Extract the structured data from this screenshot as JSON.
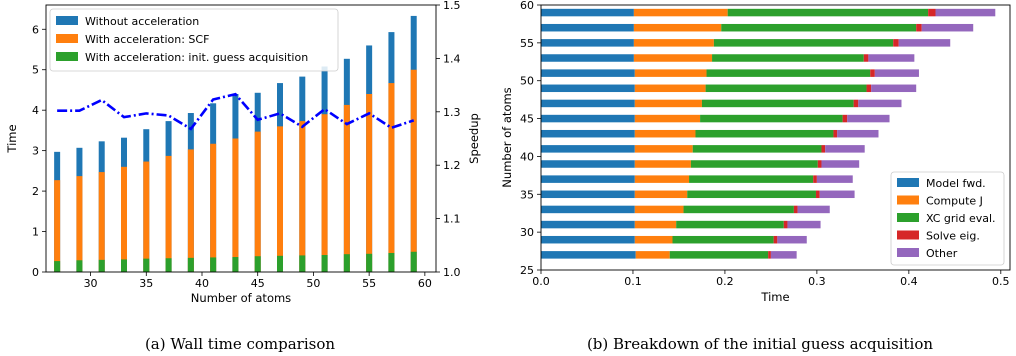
{
  "colors": {
    "blue": "#1f77b4",
    "orange": "#ff7f0e",
    "green": "#2ca02c",
    "red": "#d62728",
    "purple": "#9467bd",
    "speedup_line": "#0000ff"
  },
  "chart_data": [
    {
      "type": "bar",
      "caption": "(a) Wall time comparison",
      "xlabel": "Number of atoms",
      "ylabel": "Time",
      "y2label": "Speedup",
      "xlim": [
        26,
        61
      ],
      "ylim": [
        0,
        6.6
      ],
      "y2lim": [
        1.0,
        1.5
      ],
      "xticks": [
        30,
        35,
        40,
        45,
        50,
        55,
        60
      ],
      "yticks": [
        0,
        1,
        2,
        3,
        4,
        5,
        6
      ],
      "y2ticks": [
        "1.0",
        "1.1",
        "1.2",
        "1.3",
        "1.4",
        "1.5"
      ],
      "legend_position": "top-left",
      "x": [
        27,
        29,
        31,
        33,
        35,
        37,
        39,
        41,
        43,
        45,
        47,
        49,
        51,
        53,
        55,
        57,
        59
      ],
      "series": [
        {
          "name": "Without acceleration",
          "color": "blue",
          "values": [
            2.97,
            3.07,
            3.23,
            3.32,
            3.53,
            3.73,
            3.93,
            4.17,
            4.4,
            4.43,
            4.67,
            4.83,
            5.08,
            5.27,
            5.6,
            5.93,
            6.33
          ]
        },
        {
          "name": "With acceleration: SCF",
          "color": "orange",
          "values": [
            2.27,
            2.37,
            2.47,
            2.6,
            2.73,
            2.87,
            3.03,
            3.17,
            3.3,
            3.47,
            3.6,
            3.73,
            3.9,
            4.13,
            4.4,
            4.67,
            5.0
          ]
        },
        {
          "name": "With acceleration: init. guess acquisition",
          "color": "green",
          "values": [
            0.27,
            0.29,
            0.3,
            0.31,
            0.33,
            0.34,
            0.35,
            0.36,
            0.37,
            0.39,
            0.4,
            0.41,
            0.42,
            0.44,
            0.45,
            0.47,
            0.5
          ]
        }
      ],
      "speedup": [
        1.302,
        1.302,
        1.322,
        1.29,
        1.297,
        1.293,
        1.268,
        1.323,
        1.333,
        1.285,
        1.297,
        1.272,
        1.305,
        1.277,
        1.297,
        1.27,
        1.284
      ]
    },
    {
      "type": "bar",
      "orientation": "horizontal",
      "stacked": true,
      "caption": "(b) Breakdown of the initial guess acquisition",
      "xlabel": "Time",
      "ylabel": "Number of atoms",
      "xlim": [
        0,
        0.51
      ],
      "ylim": [
        25,
        60
      ],
      "xticks": [
        "0.0",
        "0.1",
        "0.2",
        "0.3",
        "0.4",
        "0.5"
      ],
      "yticks": [
        25,
        30,
        35,
        40,
        45,
        50,
        55,
        60
      ],
      "legend_position": "bottom-right",
      "y": [
        27,
        29,
        31,
        33,
        35,
        37,
        39,
        41,
        43,
        45,
        47,
        49,
        51,
        53,
        55,
        57,
        59
      ],
      "series": [
        {
          "name": "Model fwd.",
          "color": "blue",
          "values": [
            0.103,
            0.102,
            0.102,
            0.102,
            0.102,
            0.102,
            0.102,
            0.102,
            0.102,
            0.102,
            0.102,
            0.102,
            0.102,
            0.101,
            0.101,
            0.101,
            0.101
          ]
        },
        {
          "name": "Compute J",
          "color": "orange",
          "values": [
            0.037,
            0.041,
            0.045,
            0.053,
            0.057,
            0.059,
            0.061,
            0.063,
            0.066,
            0.071,
            0.073,
            0.077,
            0.078,
            0.085,
            0.087,
            0.095,
            0.102
          ]
        },
        {
          "name": "XC grid eval.",
          "color": "green",
          "values": [
            0.107,
            0.11,
            0.117,
            0.12,
            0.14,
            0.135,
            0.138,
            0.14,
            0.15,
            0.155,
            0.165,
            0.175,
            0.178,
            0.165,
            0.195,
            0.212,
            0.218
          ]
        },
        {
          "name": "Solve eig.",
          "color": "red",
          "values": [
            0.003,
            0.004,
            0.004,
            0.004,
            0.004,
            0.004,
            0.004,
            0.004,
            0.004,
            0.005,
            0.005,
            0.005,
            0.005,
            0.005,
            0.006,
            0.006,
            0.008
          ]
        },
        {
          "name": "Other",
          "color": "purple",
          "values": [
            0.028,
            0.032,
            0.036,
            0.035,
            0.038,
            0.039,
            0.041,
            0.043,
            0.045,
            0.046,
            0.047,
            0.049,
            0.048,
            0.05,
            0.056,
            0.056,
            0.065
          ]
        }
      ]
    }
  ]
}
